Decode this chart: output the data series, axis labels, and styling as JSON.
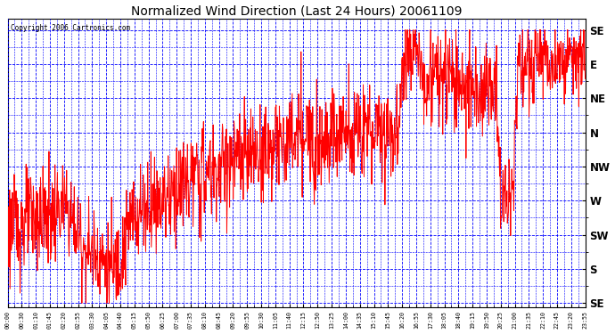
{
  "title": "Normalized Wind Direction (Last 24 Hours) 20061109",
  "copyright": "Copyright 2006 Cartronics.com",
  "background_color": "#ffffff",
  "plot_bg_color": "#ffffff",
  "line_color": "#ff0000",
  "grid_color": "#0000ff",
  "title_color": "#000000",
  "ytick_labels": [
    "SE",
    "S",
    "SW",
    "W",
    "NW",
    "N",
    "NE",
    "E",
    "SE"
  ],
  "ytick_values": [
    0,
    45,
    90,
    135,
    180,
    225,
    270,
    315,
    360
  ],
  "ylim": [
    -5,
    375
  ],
  "xtick_labels": [
    "00:00",
    "00:30",
    "01:10",
    "01:45",
    "02:20",
    "02:55",
    "03:30",
    "04:05",
    "04:40",
    "05:15",
    "05:50",
    "06:25",
    "07:00",
    "07:35",
    "08:10",
    "08:45",
    "09:20",
    "09:55",
    "10:30",
    "11:05",
    "11:40",
    "12:15",
    "12:50",
    "13:25",
    "14:00",
    "14:35",
    "15:10",
    "15:45",
    "16:20",
    "16:55",
    "17:30",
    "18:05",
    "18:40",
    "19:15",
    "19:50",
    "20:25",
    "21:00",
    "21:35",
    "22:10",
    "22:45",
    "23:20",
    "23:55"
  ],
  "figsize": [
    6.9,
    3.75
  ],
  "dpi": 100
}
